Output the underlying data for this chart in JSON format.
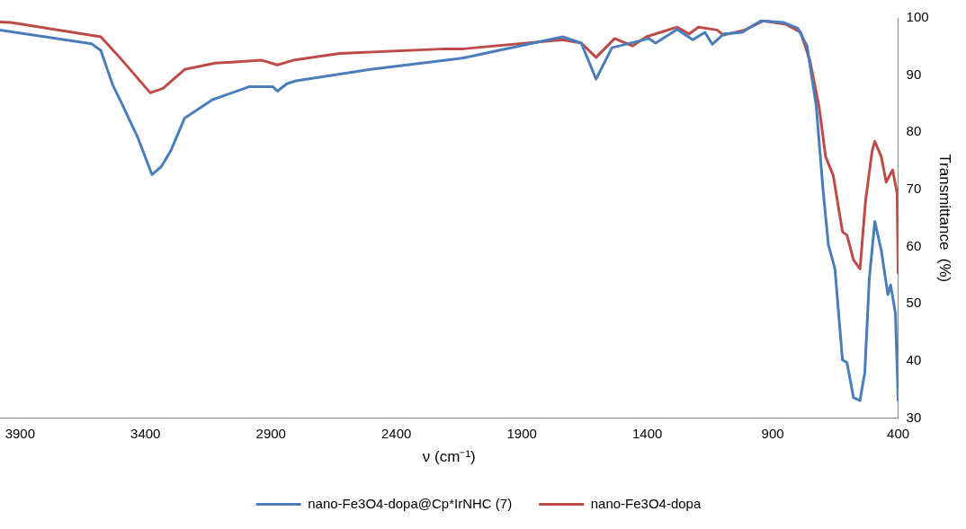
{
  "chart_data": {
    "type": "line",
    "xlabel": "ν (cm⁻¹)",
    "ylabel": "Transmittance  (%)",
    "xlim": [
      3980,
      400
    ],
    "xticks": [
      3900,
      3400,
      2900,
      2400,
      1900,
      1400,
      900,
      400
    ],
    "ylim": [
      30,
      100
    ],
    "yticks": [
      30,
      40,
      50,
      60,
      70,
      80,
      90,
      100
    ],
    "grid": false,
    "legend": "bottom",
    "marker": "none",
    "line_style": "solid",
    "series": [
      {
        "name": "nano-Fe3O4-dopa@Cp*IrNHC (7)",
        "color": "#4a7ebb",
        "x": [
          3980,
          3800,
          3615,
          3578,
          3530,
          3493,
          3430,
          3374,
          3337,
          3300,
          3244,
          3133,
          2985,
          2893,
          2874,
          2837,
          2800,
          2504,
          2133,
          1737,
          1663,
          1604,
          1541,
          1393,
          1367,
          1281,
          1219,
          1170,
          1141,
          1096,
          1022,
          948,
          856,
          800,
          763,
          726,
          700,
          678,
          652,
          622,
          604,
          578,
          552,
          533,
          515,
          493,
          467,
          441,
          430,
          411,
          400
        ],
        "values": [
          97.9,
          96.7,
          95.5,
          94.3,
          88.2,
          84.9,
          79,
          72.6,
          74,
          76.7,
          82.5,
          85.7,
          88,
          88,
          87.2,
          88.5,
          89,
          91,
          93,
          96.7,
          95.6,
          89.3,
          94.8,
          96.4,
          95.6,
          98,
          96.2,
          97.5,
          95.4,
          97.2,
          97.5,
          99.5,
          99.2,
          98.2,
          95.1,
          84.4,
          70.2,
          60.3,
          56.1,
          40.2,
          39.7,
          33.6,
          33.1,
          38,
          54.4,
          64.4,
          59.3,
          51.6,
          53.3,
          48.4,
          33.1
        ]
      },
      {
        "name": "nano-Fe3O4-dopa",
        "color": "#be4b48",
        "x": [
          3980,
          3937,
          3578,
          3493,
          3381,
          3330,
          3244,
          3122,
          2937,
          2874,
          2811,
          2626,
          2207,
          2133,
          1737,
          1663,
          1604,
          1530,
          1459,
          1404,
          1281,
          1233,
          1196,
          1122,
          1096,
          1011,
          937,
          848,
          789,
          752,
          715,
          689,
          659,
          622,
          604,
          578,
          552,
          530,
          504,
          493,
          467,
          448,
          422,
          404,
          400
        ],
        "values": [
          99.3,
          99.2,
          96.7,
          92.6,
          86.9,
          87.7,
          91,
          92.1,
          92.6,
          91.8,
          92.6,
          93.8,
          94.6,
          94.6,
          96.2,
          95.6,
          93.1,
          96.4,
          95.1,
          96.7,
          98.4,
          97.2,
          98.4,
          97.9,
          97,
          97.9,
          99.5,
          98.9,
          97.5,
          92.6,
          84.4,
          75.7,
          72.5,
          62.6,
          62,
          57.7,
          56.1,
          68,
          76.7,
          78.4,
          75.7,
          71.3,
          73.4,
          69.3,
          55.4
        ]
      }
    ]
  }
}
